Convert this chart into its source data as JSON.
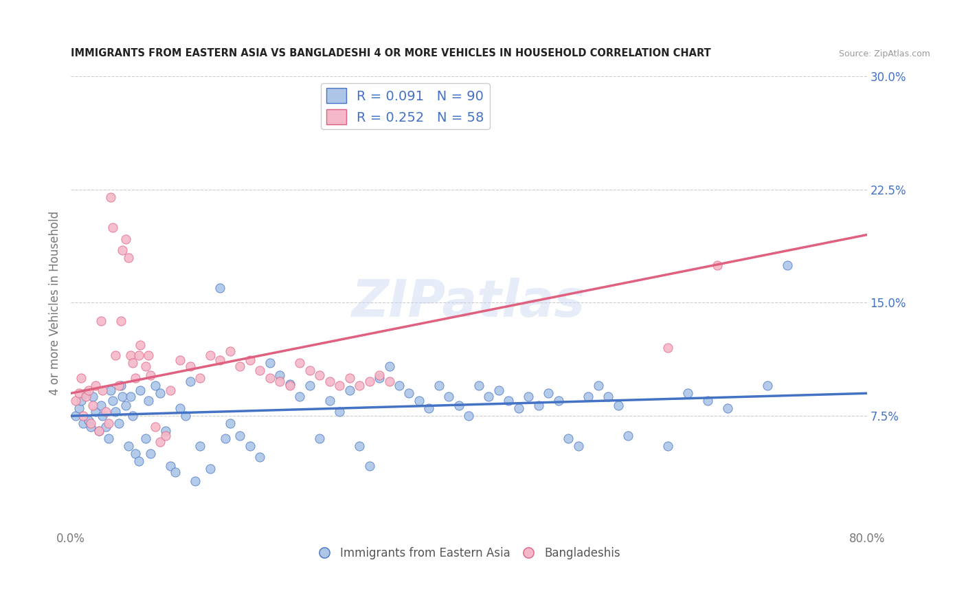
{
  "title": "IMMIGRANTS FROM EASTERN ASIA VS BANGLADESHI 4 OR MORE VEHICLES IN HOUSEHOLD CORRELATION CHART",
  "source": "Source: ZipAtlas.com",
  "ylabel": "4 or more Vehicles in Household",
  "xlim": [
    0.0,
    0.8
  ],
  "ylim": [
    0.0,
    0.3
  ],
  "xticks": [
    0.0,
    0.1,
    0.2,
    0.3,
    0.4,
    0.5,
    0.6,
    0.7,
    0.8
  ],
  "xticklabels": [
    "0.0%",
    "",
    "",
    "",
    "",
    "",
    "",
    "",
    "80.0%"
  ],
  "yticks_right": [
    0.075,
    0.15,
    0.225,
    0.3
  ],
  "ytick_right_labels": [
    "7.5%",
    "15.0%",
    "22.5%",
    "30.0%"
  ],
  "blue_R": 0.091,
  "blue_N": 90,
  "pink_R": 0.252,
  "pink_N": 58,
  "blue_color": "#adc6e8",
  "pink_color": "#f4b8c8",
  "blue_line_color": "#4472c4",
  "pink_line_color": "#e06080",
  "background_color": "#ffffff",
  "legend_label_blue": "Immigrants from Eastern Asia",
  "legend_label_pink": "Bangladeshis",
  "watermark": "ZIPatlas",
  "blue_scatter_x": [
    0.005,
    0.008,
    0.01,
    0.012,
    0.015,
    0.018,
    0.02,
    0.022,
    0.025,
    0.028,
    0.03,
    0.032,
    0.035,
    0.038,
    0.04,
    0.042,
    0.045,
    0.048,
    0.05,
    0.052,
    0.055,
    0.058,
    0.06,
    0.062,
    0.065,
    0.068,
    0.07,
    0.075,
    0.078,
    0.08,
    0.085,
    0.09,
    0.095,
    0.1,
    0.105,
    0.11,
    0.115,
    0.12,
    0.125,
    0.13,
    0.14,
    0.15,
    0.155,
    0.16,
    0.17,
    0.18,
    0.19,
    0.2,
    0.21,
    0.22,
    0.23,
    0.24,
    0.25,
    0.26,
    0.27,
    0.28,
    0.29,
    0.3,
    0.31,
    0.32,
    0.33,
    0.34,
    0.35,
    0.36,
    0.37,
    0.38,
    0.39,
    0.4,
    0.41,
    0.42,
    0.43,
    0.44,
    0.45,
    0.46,
    0.47,
    0.48,
    0.49,
    0.5,
    0.51,
    0.52,
    0.53,
    0.54,
    0.55,
    0.56,
    0.6,
    0.62,
    0.64,
    0.66,
    0.7,
    0.72
  ],
  "blue_scatter_y": [
    0.075,
    0.08,
    0.085,
    0.07,
    0.09,
    0.072,
    0.068,
    0.088,
    0.078,
    0.065,
    0.082,
    0.075,
    0.068,
    0.06,
    0.092,
    0.085,
    0.078,
    0.07,
    0.095,
    0.088,
    0.082,
    0.055,
    0.088,
    0.075,
    0.05,
    0.045,
    0.092,
    0.06,
    0.085,
    0.05,
    0.095,
    0.09,
    0.065,
    0.042,
    0.038,
    0.08,
    0.075,
    0.098,
    0.032,
    0.055,
    0.04,
    0.16,
    0.06,
    0.07,
    0.062,
    0.055,
    0.048,
    0.11,
    0.102,
    0.096,
    0.088,
    0.095,
    0.06,
    0.085,
    0.078,
    0.092,
    0.055,
    0.042,
    0.1,
    0.108,
    0.095,
    0.09,
    0.085,
    0.08,
    0.095,
    0.088,
    0.082,
    0.075,
    0.095,
    0.088,
    0.092,
    0.085,
    0.08,
    0.088,
    0.082,
    0.09,
    0.085,
    0.06,
    0.055,
    0.088,
    0.095,
    0.088,
    0.082,
    0.062,
    0.055,
    0.09,
    0.085,
    0.08,
    0.095,
    0.175
  ],
  "pink_scatter_x": [
    0.005,
    0.008,
    0.01,
    0.012,
    0.015,
    0.018,
    0.02,
    0.022,
    0.025,
    0.028,
    0.03,
    0.032,
    0.035,
    0.038,
    0.04,
    0.042,
    0.045,
    0.048,
    0.05,
    0.052,
    0.055,
    0.058,
    0.06,
    0.062,
    0.065,
    0.068,
    0.07,
    0.075,
    0.078,
    0.08,
    0.085,
    0.09,
    0.095,
    0.1,
    0.11,
    0.12,
    0.13,
    0.14,
    0.15,
    0.16,
    0.17,
    0.18,
    0.19,
    0.2,
    0.21,
    0.22,
    0.23,
    0.24,
    0.25,
    0.26,
    0.27,
    0.28,
    0.29,
    0.3,
    0.31,
    0.32,
    0.6,
    0.65
  ],
  "pink_scatter_y": [
    0.085,
    0.09,
    0.1,
    0.075,
    0.088,
    0.092,
    0.07,
    0.082,
    0.095,
    0.065,
    0.138,
    0.092,
    0.078,
    0.07,
    0.22,
    0.2,
    0.115,
    0.095,
    0.138,
    0.185,
    0.192,
    0.18,
    0.115,
    0.11,
    0.1,
    0.115,
    0.122,
    0.108,
    0.115,
    0.102,
    0.068,
    0.058,
    0.062,
    0.092,
    0.112,
    0.108,
    0.1,
    0.115,
    0.112,
    0.118,
    0.108,
    0.112,
    0.105,
    0.1,
    0.098,
    0.095,
    0.11,
    0.105,
    0.102,
    0.098,
    0.095,
    0.1,
    0.095,
    0.098,
    0.102,
    0.098,
    0.12,
    0.175
  ],
  "blue_line_x0": 0.0,
  "blue_line_x1": 0.8,
  "blue_line_y0": 0.075,
  "blue_line_y1": 0.09,
  "pink_line_x0": 0.0,
  "pink_line_x1": 0.8,
  "pink_line_y0": 0.09,
  "pink_line_y1": 0.195
}
